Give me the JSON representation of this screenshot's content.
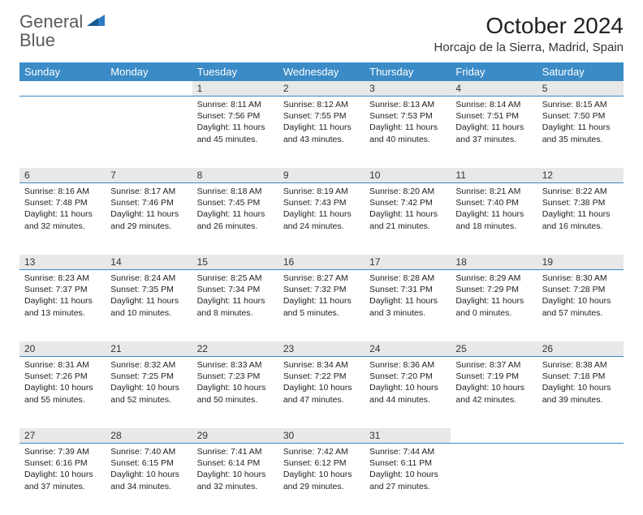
{
  "logo": {
    "line1": "General",
    "line2": "Blue"
  },
  "title": "October 2024",
  "location": "Horcajo de la Sierra, Madrid, Spain",
  "colors": {
    "header_bg": "#3b8bc6",
    "header_text": "#ffffff",
    "daynum_bg": "#e8e8e8",
    "rule": "#3b8bc6",
    "logo_gray": "#5a5a5a",
    "logo_blue": "#2d7cc0"
  },
  "weekdays": [
    "Sunday",
    "Monday",
    "Tuesday",
    "Wednesday",
    "Thursday",
    "Friday",
    "Saturday"
  ],
  "weeks": [
    [
      null,
      null,
      {
        "n": "1",
        "sr": "8:11 AM",
        "ss": "7:56 PM",
        "dl": "11 hours and 45 minutes."
      },
      {
        "n": "2",
        "sr": "8:12 AM",
        "ss": "7:55 PM",
        "dl": "11 hours and 43 minutes."
      },
      {
        "n": "3",
        "sr": "8:13 AM",
        "ss": "7:53 PM",
        "dl": "11 hours and 40 minutes."
      },
      {
        "n": "4",
        "sr": "8:14 AM",
        "ss": "7:51 PM",
        "dl": "11 hours and 37 minutes."
      },
      {
        "n": "5",
        "sr": "8:15 AM",
        "ss": "7:50 PM",
        "dl": "11 hours and 35 minutes."
      }
    ],
    [
      {
        "n": "6",
        "sr": "8:16 AM",
        "ss": "7:48 PM",
        "dl": "11 hours and 32 minutes."
      },
      {
        "n": "7",
        "sr": "8:17 AM",
        "ss": "7:46 PM",
        "dl": "11 hours and 29 minutes."
      },
      {
        "n": "8",
        "sr": "8:18 AM",
        "ss": "7:45 PM",
        "dl": "11 hours and 26 minutes."
      },
      {
        "n": "9",
        "sr": "8:19 AM",
        "ss": "7:43 PM",
        "dl": "11 hours and 24 minutes."
      },
      {
        "n": "10",
        "sr": "8:20 AM",
        "ss": "7:42 PM",
        "dl": "11 hours and 21 minutes."
      },
      {
        "n": "11",
        "sr": "8:21 AM",
        "ss": "7:40 PM",
        "dl": "11 hours and 18 minutes."
      },
      {
        "n": "12",
        "sr": "8:22 AM",
        "ss": "7:38 PM",
        "dl": "11 hours and 16 minutes."
      }
    ],
    [
      {
        "n": "13",
        "sr": "8:23 AM",
        "ss": "7:37 PM",
        "dl": "11 hours and 13 minutes."
      },
      {
        "n": "14",
        "sr": "8:24 AM",
        "ss": "7:35 PM",
        "dl": "11 hours and 10 minutes."
      },
      {
        "n": "15",
        "sr": "8:25 AM",
        "ss": "7:34 PM",
        "dl": "11 hours and 8 minutes."
      },
      {
        "n": "16",
        "sr": "8:27 AM",
        "ss": "7:32 PM",
        "dl": "11 hours and 5 minutes."
      },
      {
        "n": "17",
        "sr": "8:28 AM",
        "ss": "7:31 PM",
        "dl": "11 hours and 3 minutes."
      },
      {
        "n": "18",
        "sr": "8:29 AM",
        "ss": "7:29 PM",
        "dl": "11 hours and 0 minutes."
      },
      {
        "n": "19",
        "sr": "8:30 AM",
        "ss": "7:28 PM",
        "dl": "10 hours and 57 minutes."
      }
    ],
    [
      {
        "n": "20",
        "sr": "8:31 AM",
        "ss": "7:26 PM",
        "dl": "10 hours and 55 minutes."
      },
      {
        "n": "21",
        "sr": "8:32 AM",
        "ss": "7:25 PM",
        "dl": "10 hours and 52 minutes."
      },
      {
        "n": "22",
        "sr": "8:33 AM",
        "ss": "7:23 PM",
        "dl": "10 hours and 50 minutes."
      },
      {
        "n": "23",
        "sr": "8:34 AM",
        "ss": "7:22 PM",
        "dl": "10 hours and 47 minutes."
      },
      {
        "n": "24",
        "sr": "8:36 AM",
        "ss": "7:20 PM",
        "dl": "10 hours and 44 minutes."
      },
      {
        "n": "25",
        "sr": "8:37 AM",
        "ss": "7:19 PM",
        "dl": "10 hours and 42 minutes."
      },
      {
        "n": "26",
        "sr": "8:38 AM",
        "ss": "7:18 PM",
        "dl": "10 hours and 39 minutes."
      }
    ],
    [
      {
        "n": "27",
        "sr": "7:39 AM",
        "ss": "6:16 PM",
        "dl": "10 hours and 37 minutes."
      },
      {
        "n": "28",
        "sr": "7:40 AM",
        "ss": "6:15 PM",
        "dl": "10 hours and 34 minutes."
      },
      {
        "n": "29",
        "sr": "7:41 AM",
        "ss": "6:14 PM",
        "dl": "10 hours and 32 minutes."
      },
      {
        "n": "30",
        "sr": "7:42 AM",
        "ss": "6:12 PM",
        "dl": "10 hours and 29 minutes."
      },
      {
        "n": "31",
        "sr": "7:44 AM",
        "ss": "6:11 PM",
        "dl": "10 hours and 27 minutes."
      },
      null,
      null
    ]
  ],
  "labels": {
    "sunrise": "Sunrise:",
    "sunset": "Sunset:",
    "daylight": "Daylight:"
  }
}
